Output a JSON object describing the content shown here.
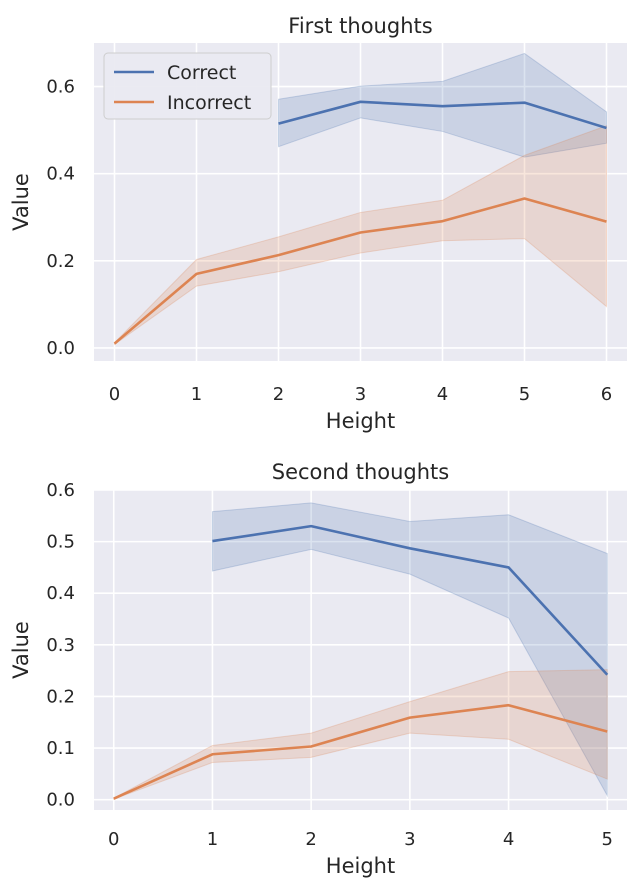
{
  "chart_data": [
    {
      "type": "line",
      "title": "First thoughts",
      "xlabel": "Height",
      "ylabel": "Value",
      "xlim": [
        -0.25,
        6.25
      ],
      "ylim": [
        -0.03,
        0.7
      ],
      "xticks": [
        0,
        1,
        2,
        3,
        4,
        5,
        6
      ],
      "xtick_labels": [
        "0",
        "1",
        "2",
        "3",
        "4",
        "5",
        "6"
      ],
      "yticks": [
        0.0,
        0.2,
        0.4,
        0.6
      ],
      "ytick_labels": [
        "0.0",
        "0.2",
        "0.4",
        "0.6"
      ],
      "grid": true,
      "legend": {
        "position": "top-left",
        "entries": [
          "Correct",
          "Incorrect"
        ]
      },
      "series": [
        {
          "name": "Correct",
          "color": "#4c72b0",
          "x": [
            2,
            3,
            4,
            5,
            6
          ],
          "y": [
            0.515,
            0.565,
            0.555,
            0.563,
            0.505
          ],
          "lower": [
            0.462,
            0.528,
            0.497,
            0.438,
            0.47
          ],
          "upper": [
            0.571,
            0.601,
            0.612,
            0.676,
            0.542
          ]
        },
        {
          "name": "Incorrect",
          "color": "#dd8452",
          "x": [
            0,
            1,
            2,
            3,
            4,
            5,
            6
          ],
          "y": [
            0.01,
            0.17,
            0.213,
            0.265,
            0.291,
            0.343,
            0.29
          ],
          "lower": [
            0.008,
            0.142,
            0.175,
            0.218,
            0.246,
            0.251,
            0.095
          ],
          "upper": [
            0.012,
            0.203,
            0.255,
            0.311,
            0.339,
            0.442,
            0.51
          ]
        }
      ]
    },
    {
      "type": "line",
      "title": "Second thoughts",
      "xlabel": "Height",
      "ylabel": "Value",
      "xlim": [
        -0.2,
        5.2
      ],
      "ylim": [
        -0.02,
        0.6
      ],
      "xticks": [
        0,
        1,
        2,
        3,
        4,
        5
      ],
      "xtick_labels": [
        "0",
        "1",
        "2",
        "3",
        "4",
        "5"
      ],
      "yticks": [
        0.0,
        0.1,
        0.2,
        0.3,
        0.4,
        0.5,
        0.6
      ],
      "ytick_labels": [
        "0.0",
        "0.1",
        "0.2",
        "0.3",
        "0.4",
        "0.5",
        "0.6"
      ],
      "grid": true,
      "series": [
        {
          "name": "Correct",
          "color": "#4c72b0",
          "x": [
            1,
            2,
            3,
            4,
            5
          ],
          "y": [
            0.501,
            0.53,
            0.487,
            0.45,
            0.242
          ],
          "lower": [
            0.443,
            0.485,
            0.437,
            0.352,
            0.008
          ],
          "upper": [
            0.558,
            0.575,
            0.539,
            0.552,
            0.477
          ]
        },
        {
          "name": "Incorrect",
          "color": "#dd8452",
          "x": [
            0,
            1,
            2,
            3,
            4,
            5
          ],
          "y": [
            0.002,
            0.088,
            0.103,
            0.159,
            0.183,
            0.132
          ],
          "lower": [
            0.001,
            0.072,
            0.082,
            0.129,
            0.117,
            0.04
          ],
          "upper": [
            0.003,
            0.105,
            0.129,
            0.19,
            0.248,
            0.252
          ]
        }
      ]
    }
  ]
}
